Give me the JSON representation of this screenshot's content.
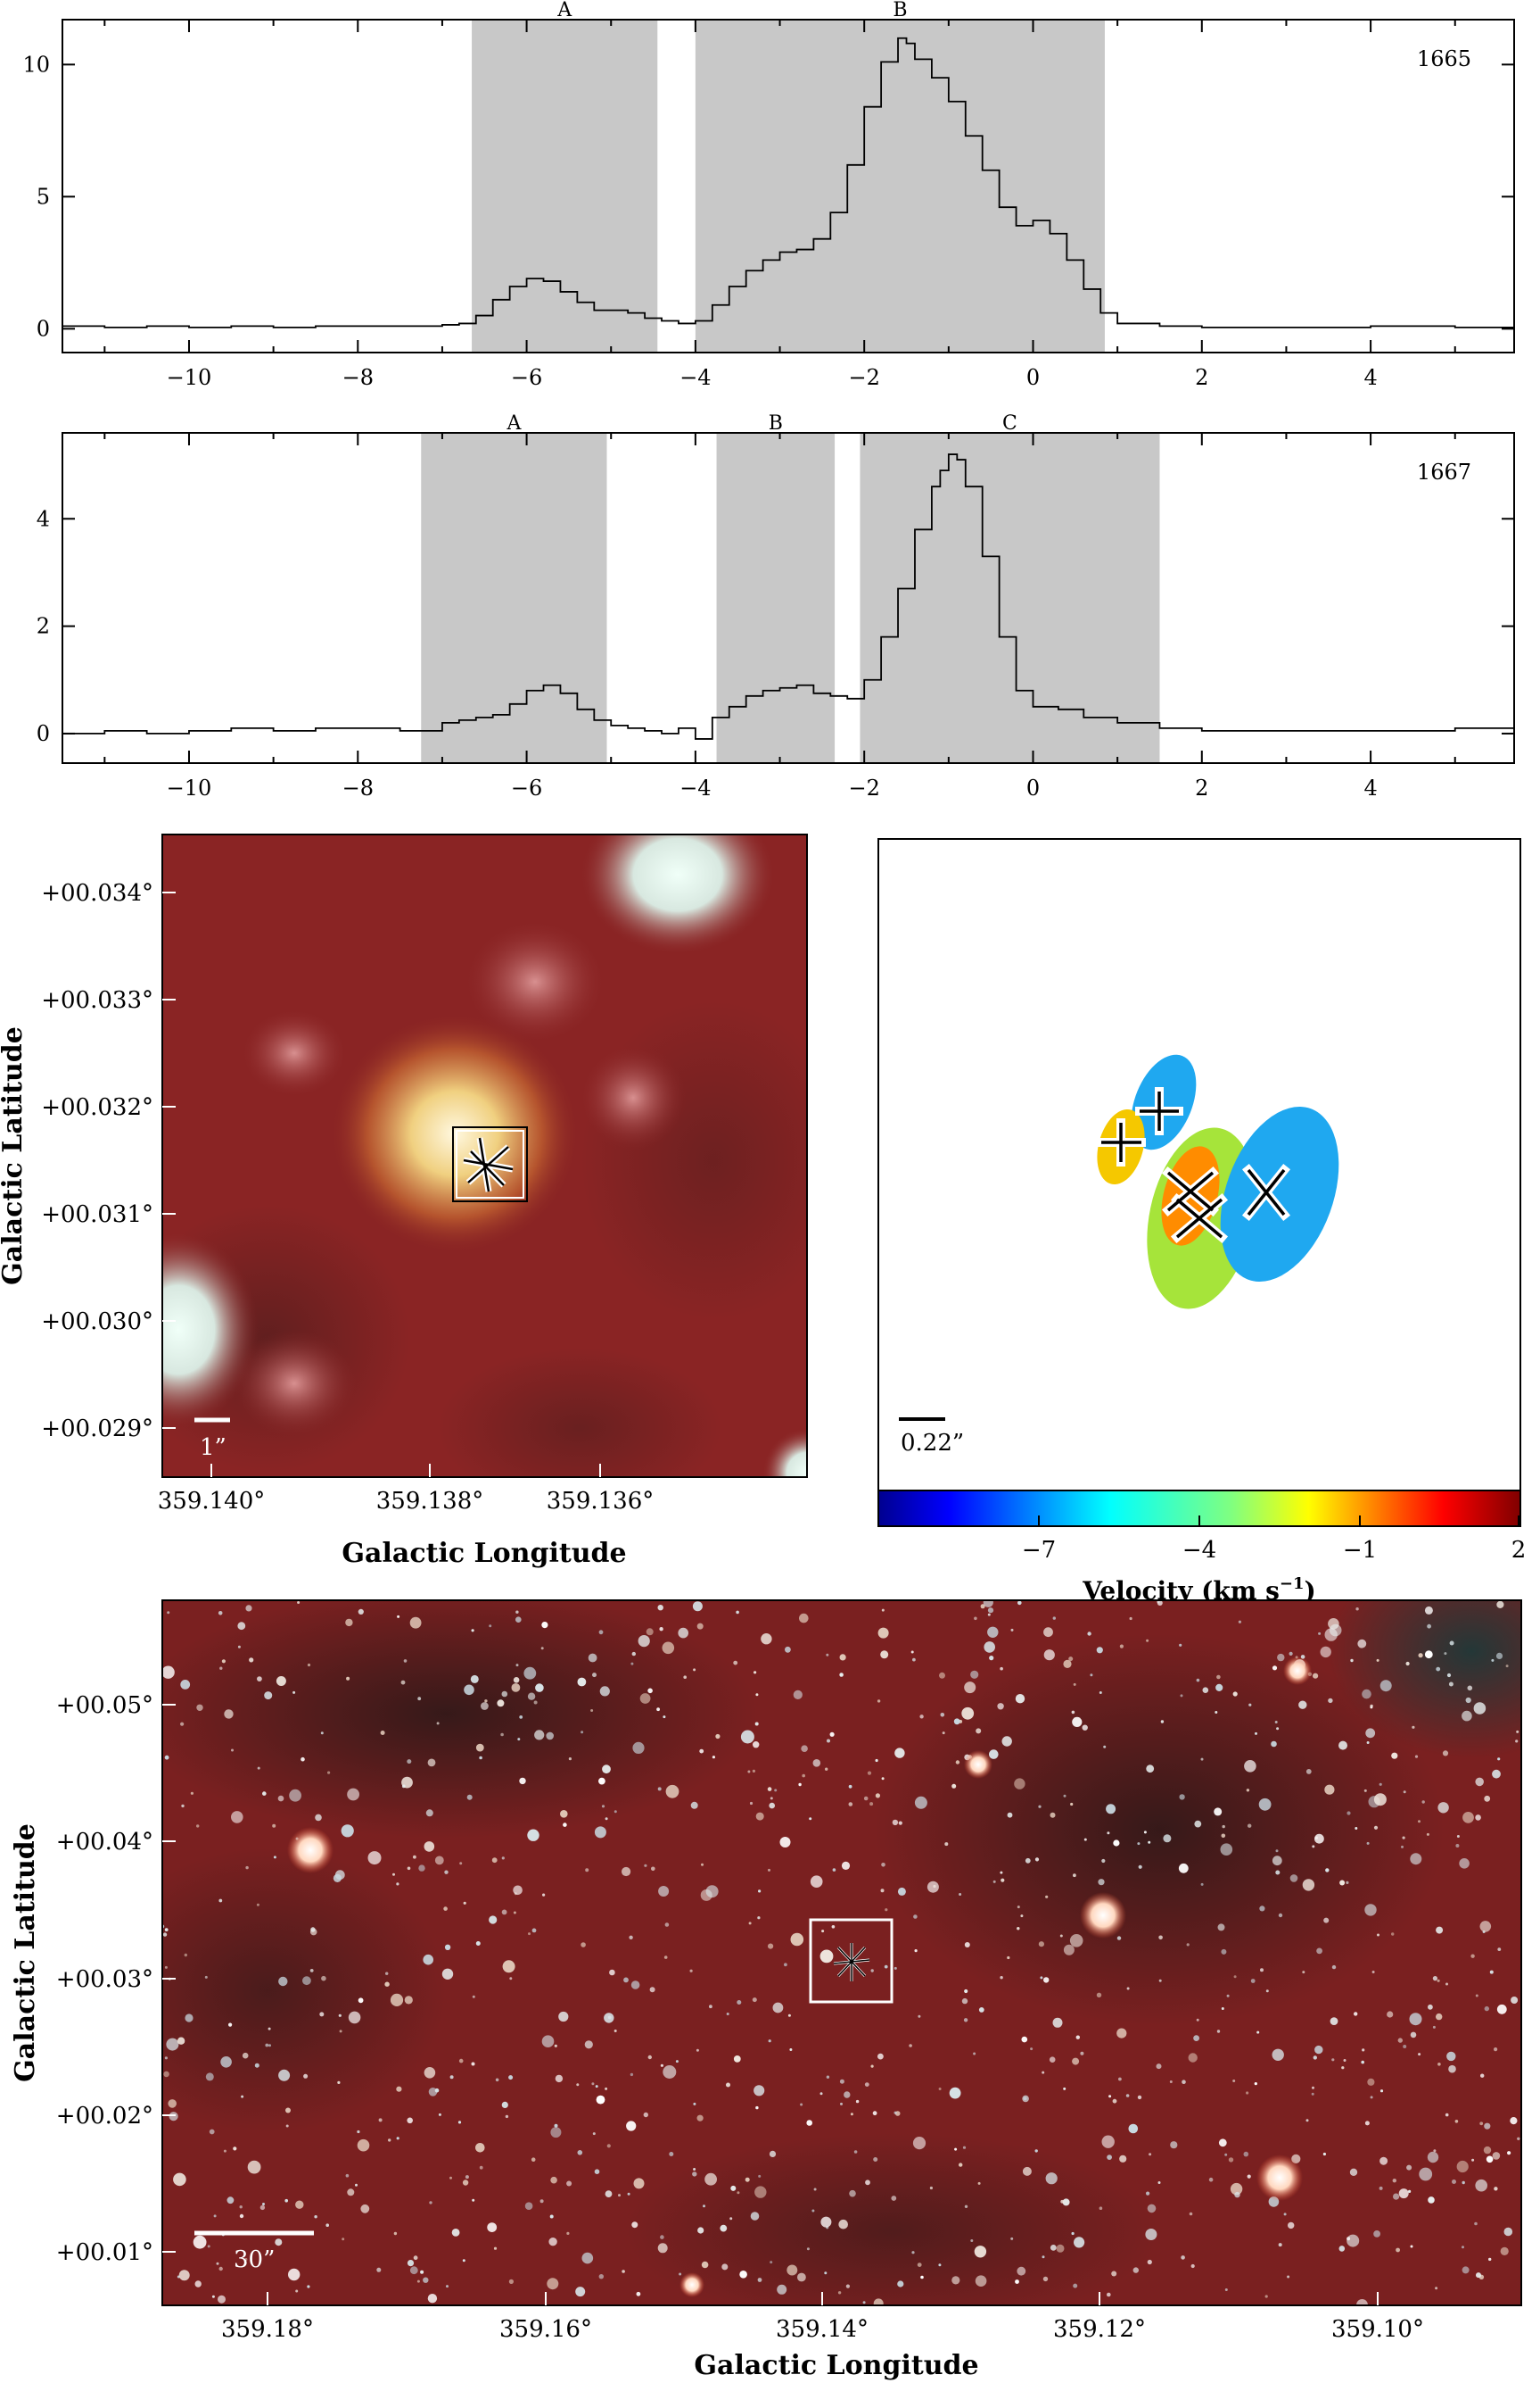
{
  "chart_data": [
    {
      "type": "line",
      "panel": "spectrum-1665",
      "label": "1665",
      "xlim": [
        -11.5,
        5.7
      ],
      "ylim": [
        -0.9,
        11.7
      ],
      "xticks": [
        "−10",
        "−8",
        "−6",
        "−4",
        "−2",
        "0",
        "2",
        "4"
      ],
      "xtick_values": [
        -10,
        -8,
        -6,
        -4,
        -2,
        0,
        2,
        4
      ],
      "yticks": [
        "0",
        "5",
        "10"
      ],
      "ytick_values": [
        0,
        5,
        10
      ],
      "regions": [
        {
          "label": "A",
          "from": -6.65,
          "to": -4.45
        },
        {
          "label": "B",
          "from": -4.0,
          "to": 0.85
        }
      ],
      "series": [
        {
          "x": [
            -11.5,
            -11,
            -10.5,
            -10,
            -9.5,
            -9,
            -8.5,
            -8,
            -7.5,
            -7,
            -6.8,
            -6.6,
            -6.4,
            -6.2,
            -6,
            -5.8,
            -5.6,
            -5.4,
            -5.2,
            -5,
            -4.8,
            -4.6,
            -4.4,
            -4.2,
            -4,
            -3.8,
            -3.6,
            -3.4,
            -3.2,
            -3,
            -2.8,
            -2.6,
            -2.4,
            -2.2,
            -2,
            -1.8,
            -1.6,
            -1.5,
            -1.4,
            -1.2,
            -1,
            -0.8,
            -0.6,
            -0.4,
            -0.2,
            0,
            0.2,
            0.4,
            0.6,
            0.8,
            1,
            1.5,
            2,
            3,
            4,
            5,
            5.7
          ],
          "y": [
            0.1,
            0.05,
            0.1,
            0.05,
            0.1,
            0.05,
            0.1,
            0.1,
            0.1,
            0.15,
            0.2,
            0.5,
            1.1,
            1.6,
            1.9,
            1.8,
            1.4,
            1,
            0.7,
            0.7,
            0.6,
            0.4,
            0.3,
            0.2,
            0.3,
            0.9,
            1.6,
            2.2,
            2.6,
            2.9,
            3,
            3.4,
            4.4,
            6.2,
            8.4,
            10.1,
            11,
            10.8,
            10.2,
            9.5,
            8.6,
            7.3,
            6,
            4.6,
            3.9,
            4.1,
            3.6,
            2.6,
            1.5,
            0.6,
            0.2,
            0.1,
            0.05,
            0.05,
            0.1,
            0.05,
            0.1
          ]
        }
      ]
    },
    {
      "type": "line",
      "panel": "spectrum-1667",
      "label": "1667",
      "xlim": [
        -11.5,
        5.7
      ],
      "ylim": [
        -0.55,
        5.6
      ],
      "xticks": [
        "−10",
        "−8",
        "−6",
        "−4",
        "−2",
        "0",
        "2",
        "4"
      ],
      "xtick_values": [
        -10,
        -8,
        -6,
        -4,
        -2,
        0,
        2,
        4
      ],
      "yticks": [
        "0",
        "2",
        "4"
      ],
      "ytick_values": [
        0,
        2,
        4
      ],
      "regions": [
        {
          "label": "A",
          "from": -7.25,
          "to": -5.05
        },
        {
          "label": "B",
          "from": -3.75,
          "to": -2.35
        },
        {
          "label": "C",
          "from": -2.05,
          "to": 1.5
        }
      ],
      "series": [
        {
          "x": [
            -11.5,
            -11,
            -10.5,
            -10,
            -9.5,
            -9,
            -8.5,
            -8,
            -7.5,
            -7,
            -6.8,
            -6.6,
            -6.4,
            -6.2,
            -6,
            -5.8,
            -5.6,
            -5.4,
            -5.2,
            -5,
            -4.8,
            -4.6,
            -4.4,
            -4.2,
            -4,
            -3.8,
            -3.6,
            -3.4,
            -3.2,
            -3,
            -2.8,
            -2.6,
            -2.4,
            -2.2,
            -2,
            -1.8,
            -1.6,
            -1.4,
            -1.2,
            -1.1,
            -1,
            -0.9,
            -0.8,
            -0.6,
            -0.4,
            -0.2,
            0,
            0.3,
            0.6,
            1,
            1.5,
            2,
            3,
            4,
            5,
            5.7
          ],
          "y": [
            0,
            0.05,
            0,
            0.05,
            0.1,
            0.05,
            0.1,
            0.1,
            0.05,
            0.2,
            0.25,
            0.3,
            0.35,
            0.55,
            0.8,
            0.9,
            0.75,
            0.45,
            0.25,
            0.15,
            0.1,
            0.05,
            0,
            0.1,
            -0.1,
            0.3,
            0.5,
            0.7,
            0.8,
            0.85,
            0.9,
            0.75,
            0.7,
            0.65,
            1,
            1.8,
            2.7,
            3.8,
            4.6,
            4.9,
            5.2,
            5.1,
            4.6,
            3.3,
            1.8,
            0.8,
            0.5,
            0.45,
            0.3,
            0.2,
            0.1,
            0.05,
            0.05,
            0.05,
            0.1,
            0.05
          ]
        }
      ]
    },
    {
      "type": "other",
      "panel": "zoom-image",
      "xlabel": "Galactic Longitude",
      "ylabel": "Galactic Latitude",
      "xticks": [
        "359.140°",
        "359.138°",
        "359.136°"
      ],
      "yticks": [
        "+00.034°",
        "+00.033°",
        "+00.032°",
        "+00.031°",
        "+00.030°",
        "+00.029°"
      ],
      "scalebar": "1”"
    },
    {
      "type": "scatter",
      "panel": "maser-spots",
      "scalebar": "0.22”",
      "colorbar_label": "Velocity (km s",
      "colorbar_label_sup": "−1",
      "colorbar_label_end": ")",
      "colorbar_range": [
        -10,
        2
      ],
      "colorbar_ticks": [
        "−7",
        "−4",
        "−1",
        "2"
      ],
      "colorbar_tick_values": [
        -7,
        -4,
        -1,
        2
      ]
    },
    {
      "type": "other",
      "panel": "wide-image",
      "xlabel": "Galactic Longitude",
      "ylabel": "Galactic Latitude",
      "xticks": [
        "359.18°",
        "359.16°",
        "359.14°",
        "359.12°",
        "359.10°"
      ],
      "yticks": [
        "+00.05°",
        "+00.04°",
        "+00.03°",
        "+00.02°",
        "+00.01°"
      ],
      "scalebar": "30”"
    }
  ],
  "colors": {
    "region": "#c8c8c8",
    "spot_blue": "#1fa8f0",
    "spot_yellow": "#f5c800",
    "spot_green": "#a6e43a",
    "spot_orange": "#ff8c00",
    "image_base": "#8a2424"
  }
}
